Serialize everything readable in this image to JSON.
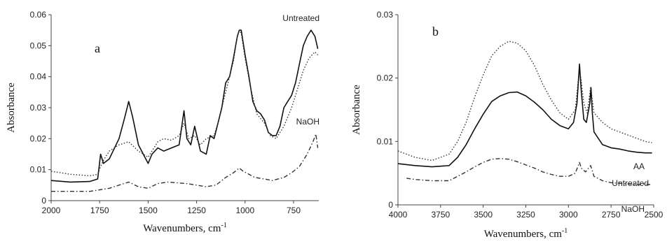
{
  "chart_data": [
    {
      "type": "line",
      "panel_label": "a",
      "xlabel": "Wavenumbers, cm",
      "xlabel_sup": "-1",
      "ylabel": "Absorbance",
      "xlim": [
        2000,
        620
      ],
      "ylim": [
        0,
        0.06
      ],
      "x_ticks": [
        2000,
        1750,
        1500,
        1250,
        1000,
        750
      ],
      "y_ticks": [
        0,
        0.01,
        0.02,
        0.03,
        0.04,
        0.05,
        0.06
      ],
      "y_tick_labels": [
        "0",
        "0.01",
        "0.02",
        "0.03",
        "0.04",
        "0.05",
        "0.06"
      ],
      "series": [
        {
          "name": "Untreated",
          "style": "solid",
          "color": "#111111",
          "points": [
            [
              2000,
              0.0065
            ],
            [
              1900,
              0.006
            ],
            [
              1800,
              0.0062
            ],
            [
              1760,
              0.007
            ],
            [
              1745,
              0.015
            ],
            [
              1730,
              0.012
            ],
            [
              1700,
              0.0135
            ],
            [
              1650,
              0.02
            ],
            [
              1620,
              0.027
            ],
            [
              1600,
              0.032
            ],
            [
              1580,
              0.027
            ],
            [
              1550,
              0.018
            ],
            [
              1500,
              0.012
            ],
            [
              1480,
              0.015
            ],
            [
              1450,
              0.017
            ],
            [
              1420,
              0.016
            ],
            [
              1380,
              0.017
            ],
            [
              1340,
              0.018
            ],
            [
              1315,
              0.029
            ],
            [
              1300,
              0.02
            ],
            [
              1280,
              0.018
            ],
            [
              1260,
              0.024
            ],
            [
              1230,
              0.016
            ],
            [
              1200,
              0.015
            ],
            [
              1180,
              0.021
            ],
            [
              1160,
              0.02
            ],
            [
              1140,
              0.025
            ],
            [
              1120,
              0.03
            ],
            [
              1100,
              0.038
            ],
            [
              1080,
              0.04
            ],
            [
              1060,
              0.046
            ],
            [
              1040,
              0.053
            ],
            [
              1030,
              0.055
            ],
            [
              1020,
              0.055
            ],
            [
              1000,
              0.047
            ],
            [
              980,
              0.04
            ],
            [
              960,
              0.032
            ],
            [
              940,
              0.029
            ],
            [
              920,
              0.028
            ],
            [
              900,
              0.026
            ],
            [
              880,
              0.022
            ],
            [
              860,
              0.021
            ],
            [
              840,
              0.021
            ],
            [
              820,
              0.024
            ],
            [
              800,
              0.03
            ],
            [
              780,
              0.032
            ],
            [
              760,
              0.034
            ],
            [
              740,
              0.038
            ],
            [
              720,
              0.044
            ],
            [
              700,
              0.05
            ],
            [
              680,
              0.053
            ],
            [
              660,
              0.055
            ],
            [
              640,
              0.053
            ],
            [
              625,
              0.049
            ]
          ]
        },
        {
          "name": "NaOH",
          "style": "dotted",
          "color": "#333333",
          "points": [
            [
              2000,
              0.0095
            ],
            [
              1900,
              0.0085
            ],
            [
              1800,
              0.008
            ],
            [
              1760,
              0.0085
            ],
            [
              1745,
              0.011
            ],
            [
              1730,
              0.013
            ],
            [
              1700,
              0.016
            ],
            [
              1650,
              0.018
            ],
            [
              1600,
              0.019
            ],
            [
              1550,
              0.016
            ],
            [
              1500,
              0.014
            ],
            [
              1450,
              0.019
            ],
            [
              1420,
              0.02
            ],
            [
              1380,
              0.0195
            ],
            [
              1340,
              0.021
            ],
            [
              1315,
              0.025
            ],
            [
              1290,
              0.02
            ],
            [
              1260,
              0.021
            ],
            [
              1230,
              0.018
            ],
            [
              1200,
              0.02
            ],
            [
              1160,
              0.021
            ],
            [
              1140,
              0.025
            ],
            [
              1100,
              0.035
            ],
            [
              1060,
              0.045
            ],
            [
              1040,
              0.053
            ],
            [
              1030,
              0.055
            ],
            [
              1020,
              0.054
            ],
            [
              1000,
              0.046
            ],
            [
              970,
              0.036
            ],
            [
              940,
              0.028
            ],
            [
              900,
              0.025
            ],
            [
              870,
              0.021
            ],
            [
              840,
              0.02
            ],
            [
              800,
              0.024
            ],
            [
              760,
              0.03
            ],
            [
              730,
              0.036
            ],
            [
              700,
              0.042
            ],
            [
              670,
              0.046
            ],
            [
              640,
              0.048
            ],
            [
              625,
              0.047
            ]
          ]
        },
        {
          "name": "",
          "style": "dashdot",
          "color": "#333333",
          "points": [
            [
              2000,
              0.003
            ],
            [
              1900,
              0.003
            ],
            [
              1800,
              0.003
            ],
            [
              1750,
              0.0035
            ],
            [
              1700,
              0.004
            ],
            [
              1650,
              0.005
            ],
            [
              1600,
              0.006
            ],
            [
              1550,
              0.0045
            ],
            [
              1500,
              0.004
            ],
            [
              1450,
              0.0055
            ],
            [
              1400,
              0.006
            ],
            [
              1300,
              0.0055
            ],
            [
              1250,
              0.005
            ],
            [
              1200,
              0.0045
            ],
            [
              1150,
              0.005
            ],
            [
              1100,
              0.0075
            ],
            [
              1060,
              0.009
            ],
            [
              1030,
              0.0105
            ],
            [
              1010,
              0.0095
            ],
            [
              980,
              0.0085
            ],
            [
              950,
              0.0075
            ],
            [
              900,
              0.007
            ],
            [
              860,
              0.0065
            ],
            [
              800,
              0.0075
            ],
            [
              760,
              0.009
            ],
            [
              720,
              0.011
            ],
            [
              680,
              0.015
            ],
            [
              650,
              0.019
            ],
            [
              635,
              0.0215
            ],
            [
              625,
              0.017
            ]
          ]
        }
      ],
      "annotations": [
        {
          "text": "Untreated",
          "x": 690,
          "y": 0.059
        },
        {
          "text": "NaOH",
          "x": 670,
          "y": 0.0185
        }
      ]
    },
    {
      "type": "line",
      "panel_label": "b",
      "xlabel": "Wavenumbers, cm",
      "xlabel_sup": "-1",
      "ylabel": "Absorbance",
      "xlim": [
        4000,
        2500
      ],
      "ylim": [
        0,
        0.03
      ],
      "x_ticks": [
        4000,
        3750,
        3500,
        3250,
        3000,
        2750,
        2500
      ],
      "y_ticks": [
        0,
        0.01,
        0.02,
        0.03
      ],
      "y_tick_labels": [
        "0",
        "0.01",
        "0.02",
        "0.03"
      ],
      "series": [
        {
          "name": "AA",
          "style": "dotted",
          "color": "#333333",
          "points": [
            [
              4000,
              0.0085
            ],
            [
              3900,
              0.0075
            ],
            [
              3800,
              0.007
            ],
            [
              3700,
              0.008
            ],
            [
              3650,
              0.01
            ],
            [
              3600,
              0.013
            ],
            [
              3550,
              0.017
            ],
            [
              3500,
              0.0205
            ],
            [
              3450,
              0.0235
            ],
            [
              3400,
              0.025
            ],
            [
              3350,
              0.0258
            ],
            [
              3300,
              0.0255
            ],
            [
              3250,
              0.0243
            ],
            [
              3200,
              0.022
            ],
            [
              3150,
              0.019
            ],
            [
              3100,
              0.0165
            ],
            [
              3050,
              0.0145
            ],
            [
              3000,
              0.0135
            ],
            [
              2960,
              0.015
            ],
            [
              2935,
              0.0215
            ],
            [
              2925,
              0.0195
            ],
            [
              2910,
              0.016
            ],
            [
              2890,
              0.0145
            ],
            [
              2870,
              0.0185
            ],
            [
              2860,
              0.0165
            ],
            [
              2850,
              0.0145
            ],
            [
              2800,
              0.013
            ],
            [
              2750,
              0.012
            ],
            [
              2700,
              0.0115
            ],
            [
              2650,
              0.011
            ],
            [
              2600,
              0.0105
            ],
            [
              2550,
              0.01
            ],
            [
              2510,
              0.0098
            ]
          ]
        },
        {
          "name": "Untreated",
          "style": "solid",
          "color": "#111111",
          "points": [
            [
              4000,
              0.0065
            ],
            [
              3900,
              0.0062
            ],
            [
              3800,
              0.006
            ],
            [
              3700,
              0.0062
            ],
            [
              3650,
              0.0075
            ],
            [
              3600,
              0.0095
            ],
            [
              3550,
              0.012
            ],
            [
              3500,
              0.0143
            ],
            [
              3450,
              0.0163
            ],
            [
              3400,
              0.0172
            ],
            [
              3350,
              0.0177
            ],
            [
              3300,
              0.0178
            ],
            [
              3250,
              0.0172
            ],
            [
              3200,
              0.0162
            ],
            [
              3150,
              0.015
            ],
            [
              3100,
              0.0135
            ],
            [
              3050,
              0.0125
            ],
            [
              3000,
              0.012
            ],
            [
              2970,
              0.013
            ],
            [
              2950,
              0.016
            ],
            [
              2935,
              0.0222
            ],
            [
              2925,
              0.018
            ],
            [
              2910,
              0.0135
            ],
            [
              2895,
              0.013
            ],
            [
              2875,
              0.016
            ],
            [
              2868,
              0.0185
            ],
            [
              2860,
              0.0145
            ],
            [
              2850,
              0.0115
            ],
            [
              2800,
              0.0095
            ],
            [
              2750,
              0.009
            ],
            [
              2700,
              0.0088
            ],
            [
              2650,
              0.0085
            ],
            [
              2600,
              0.0083
            ],
            [
              2550,
              0.0082
            ],
            [
              2510,
              0.0082
            ]
          ]
        },
        {
          "name": "NaOH",
          "style": "dashdot",
          "color": "#333333",
          "points": [
            [
              3950,
              0.0042
            ],
            [
              3900,
              0.004
            ],
            [
              3800,
              0.0038
            ],
            [
              3700,
              0.0038
            ],
            [
              3650,
              0.0045
            ],
            [
              3600,
              0.0052
            ],
            [
              3550,
              0.006
            ],
            [
              3500,
              0.0067
            ],
            [
              3450,
              0.0072
            ],
            [
              3400,
              0.0073
            ],
            [
              3350,
              0.0072
            ],
            [
              3300,
              0.0068
            ],
            [
              3250,
              0.0063
            ],
            [
              3200,
              0.0058
            ],
            [
              3150,
              0.0052
            ],
            [
              3100,
              0.0048
            ],
            [
              3050,
              0.0045
            ],
            [
              3000,
              0.0045
            ],
            [
              2960,
              0.005
            ],
            [
              2935,
              0.0067
            ],
            [
              2925,
              0.0058
            ],
            [
              2900,
              0.0052
            ],
            [
              2870,
              0.0062
            ],
            [
              2850,
              0.0045
            ],
            [
              2800,
              0.0038
            ],
            [
              2750,
              0.0035
            ],
            [
              2700,
              0.0034
            ],
            [
              2650,
              0.0033
            ],
            [
              2600,
              0.0032
            ],
            [
              2550,
              0.0033
            ],
            [
              2520,
              0.0032
            ]
          ]
        }
      ],
      "annotations": [
        {
          "text": "AA",
          "x": 2590,
          "y": 0.0125
        },
        {
          "text": "Untreated",
          "x": 2660,
          "y": 0.0056
        },
        {
          "text": "NaOH",
          "x": 2600,
          "y": 0.0016
        }
      ]
    }
  ]
}
